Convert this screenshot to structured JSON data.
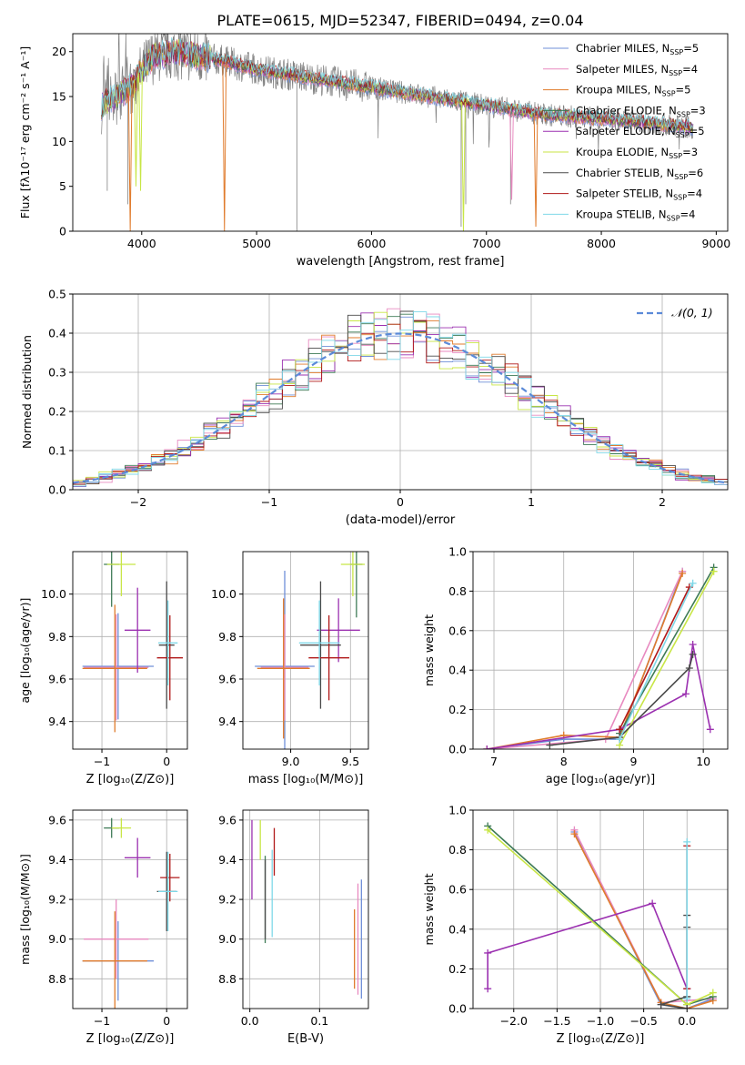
{
  "figure": {
    "title": "PLATE=0615, MJD=52347, FIBERID=0494, z=0.04"
  },
  "models": [
    {
      "name": "Chabrier MILES",
      "nssp": "5",
      "color": "#6f8fd8"
    },
    {
      "name": "Salpeter MILES",
      "nssp": "4",
      "color": "#e88ac0"
    },
    {
      "name": "Kroupa MILES",
      "nssp": "5",
      "color": "#e07b2c"
    },
    {
      "name": "Chabrier ELODIE",
      "nssp": "3",
      "color": "#3d7a55"
    },
    {
      "name": "Salpeter ELODIE",
      "nssp": "5",
      "color": "#9b30b0"
    },
    {
      "name": "Kroupa ELODIE",
      "nssp": "3",
      "color": "#c8e646"
    },
    {
      "name": "Chabrier STELIB",
      "nssp": "6",
      "color": "#4a4a4a"
    },
    {
      "name": "Salpeter STELIB",
      "nssp": "4",
      "color": "#b01818"
    },
    {
      "name": "Kroupa STELIB",
      "nssp": "4",
      "color": "#7fd8e8"
    }
  ],
  "chart_data": [
    {
      "id": "spectrum",
      "type": "line",
      "xlabel": "wavelength [Angstrom, rest frame]",
      "ylabel": "Flux [fλ10⁻¹⁷ erg cm⁻² s⁻¹ A⁻¹]",
      "xlim": [
        3400,
        9100
      ],
      "ylim": [
        0,
        22
      ],
      "xticks": [
        4000,
        5000,
        6000,
        7000,
        8000,
        9000
      ],
      "yticks": [
        0,
        5,
        10,
        15,
        20
      ],
      "data_color": "#808080",
      "data_range": [
        3650,
        8800
      ],
      "continuum": [
        [
          3650,
          14
        ],
        [
          3900,
          16
        ],
        [
          4100,
          19.5
        ],
        [
          4300,
          20
        ],
        [
          4500,
          19.5
        ],
        [
          4700,
          19
        ],
        [
          5000,
          18
        ],
        [
          5500,
          17
        ],
        [
          6000,
          16
        ],
        [
          6500,
          15
        ],
        [
          7000,
          14
        ],
        [
          7500,
          13
        ],
        [
          8000,
          12.5
        ],
        [
          8500,
          12
        ],
        [
          8800,
          11.5
        ]
      ],
      "dips": [
        [
          3900,
          0
        ],
        [
          4720,
          0
        ],
        [
          6800,
          0
        ],
        [
          7430,
          0.5
        ],
        [
          7220,
          3.5
        ],
        [
          3950,
          5
        ],
        [
          3990,
          4.5
        ]
      ]
    },
    {
      "id": "residuals",
      "type": "bar",
      "xlabel": "(data-model)/error",
      "ylabel": "Normed distribution",
      "xlim": [
        -2.5,
        2.5
      ],
      "ylim": [
        0,
        0.5
      ],
      "xticks": [
        -2,
        -1,
        0,
        1,
        2
      ],
      "yticks": [
        0.0,
        0.1,
        0.2,
        0.3,
        0.4,
        0.5
      ],
      "legend": "𝒩(0, 1)",
      "legend_position": "top-right",
      "bin_width": 0.1,
      "reference": {
        "type": "gaussian",
        "mean": 0,
        "sigma": 1,
        "style": "dashed",
        "color": "#5b8ad8"
      }
    },
    {
      "id": "age-vs-Z",
      "type": "scatter",
      "xlabel": "Z [log₁₀(Z/Z⊙)]",
      "ylabel": "age  [log₁₀(age/yr)]",
      "xlim": [
        -1.45,
        0.32
      ],
      "ylim": [
        9.27,
        10.2
      ],
      "xticks": [
        -1,
        0
      ],
      "yticks": [
        9.4,
        9.6,
        9.8,
        10.0
      ],
      "points": [
        {
          "m": 0,
          "x": -0.75,
          "y": 9.66,
          "xerr": 0.55,
          "yerr": 0.25
        },
        {
          "m": 1,
          "x": -0.78,
          "y": 9.655,
          "xerr": 0.5,
          "yerr": 0.25
        },
        {
          "m": 2,
          "x": -0.8,
          "y": 9.65,
          "xerr": 0.5,
          "yerr": 0.3
        },
        {
          "m": 3,
          "x": -0.85,
          "y": 10.14,
          "xerr": 0.12,
          "yerr": 0.2
        },
        {
          "m": 4,
          "x": -0.45,
          "y": 9.83,
          "xerr": 0.2,
          "yerr": 0.2
        },
        {
          "m": 5,
          "x": -0.7,
          "y": 10.14,
          "xerr": 0.22,
          "yerr": 0.15
        },
        {
          "m": 6,
          "x": 0.0,
          "y": 9.76,
          "xerr": 0.12,
          "yerr": 0.3
        },
        {
          "m": 7,
          "x": 0.05,
          "y": 9.7,
          "xerr": 0.2,
          "yerr": 0.2
        },
        {
          "m": 8,
          "x": 0.02,
          "y": 9.77,
          "xerr": 0.15,
          "yerr": 0.2
        }
      ]
    },
    {
      "id": "age-vs-mass",
      "type": "scatter",
      "xlabel": "mass [log₁₀(M/M⊙)]",
      "ylabel": "",
      "xlim": [
        8.6,
        9.65
      ],
      "ylim": [
        9.27,
        10.2
      ],
      "xticks": [
        9.0,
        9.5
      ],
      "yticks": [
        9.4,
        9.6,
        9.8,
        10.0
      ],
      "points": [
        {
          "m": 0,
          "x": 8.95,
          "y": 9.66,
          "xerr": 0.25,
          "yerr": 0.45
        },
        {
          "m": 1,
          "x": 8.95,
          "y": 9.655,
          "xerr": 0.2,
          "yerr": 0.25
        },
        {
          "m": 2,
          "x": 8.94,
          "y": 9.65,
          "xerr": 0.22,
          "yerr": 0.33
        },
        {
          "m": 3,
          "x": 9.55,
          "y": 10.14,
          "xerr": 0.05,
          "yerr": 0.25
        },
        {
          "m": 4,
          "x": 9.4,
          "y": 9.83,
          "xerr": 0.18,
          "yerr": 0.15
        },
        {
          "m": 5,
          "x": 9.52,
          "y": 10.14,
          "xerr": 0.1,
          "yerr": 0.15
        },
        {
          "m": 6,
          "x": 9.25,
          "y": 9.76,
          "xerr": 0.17,
          "yerr": 0.3
        },
        {
          "m": 7,
          "x": 9.32,
          "y": 9.7,
          "xerr": 0.17,
          "yerr": 0.2
        },
        {
          "m": 8,
          "x": 9.24,
          "y": 9.77,
          "xerr": 0.17,
          "yerr": 0.2
        }
      ]
    },
    {
      "id": "weight-vs-age",
      "type": "line",
      "xlabel": "age  [log₁₀(age/yr)]",
      "ylabel": "mass weight",
      "xlim": [
        6.7,
        10.35
      ],
      "ylim": [
        0,
        1.0
      ],
      "xticks": [
        7,
        8,
        9,
        10
      ],
      "yticks": [
        0.0,
        0.2,
        0.4,
        0.6,
        0.8,
        1.0
      ],
      "series": [
        {
          "m": 0,
          "x": [
            6.9,
            8.0,
            8.8,
            9.7
          ],
          "y": [
            0.0,
            0.05,
            0.05,
            0.9
          ]
        },
        {
          "m": 1,
          "x": [
            6.9,
            8.6,
            9.7
          ],
          "y": [
            0.0,
            0.05,
            0.9
          ]
        },
        {
          "m": 2,
          "x": [
            6.9,
            8.0,
            8.8,
            9.7
          ],
          "y": [
            0.0,
            0.07,
            0.06,
            0.89
          ]
        },
        {
          "m": 3,
          "x": [
            8.8,
            10.15
          ],
          "y": [
            0.08,
            0.92
          ]
        },
        {
          "m": 4,
          "x": [
            6.9,
            8.8,
            9.75,
            9.85,
            10.1
          ],
          "y": [
            0.0,
            0.1,
            0.28,
            0.53,
            0.1
          ]
        },
        {
          "m": 5,
          "x": [
            8.8,
            10.15
          ],
          "y": [
            0.02,
            0.9
          ]
        },
        {
          "m": 6,
          "x": [
            7.8,
            8.8,
            9.8,
            9.85
          ],
          "y": [
            0.02,
            0.06,
            0.41,
            0.48
          ]
        },
        {
          "m": 7,
          "x": [
            8.8,
            9.8
          ],
          "y": [
            0.1,
            0.82
          ]
        },
        {
          "m": 8,
          "x": [
            8.8,
            9.85
          ],
          "y": [
            0.05,
            0.84
          ]
        }
      ]
    },
    {
      "id": "mass-vs-Z",
      "type": "scatter",
      "xlabel": "Z [log₁₀(Z/Z⊙)]",
      "ylabel": "mass [log₁₀(M/M⊙)]",
      "xlim": [
        -1.45,
        0.32
      ],
      "ylim": [
        8.65,
        9.65
      ],
      "xticks": [
        -1,
        0
      ],
      "yticks": [
        8.8,
        9.0,
        9.2,
        9.4,
        9.6
      ],
      "points": [
        {
          "m": 0,
          "x": -0.75,
          "y": 8.89,
          "xerr": 0.55,
          "yerr": 0.2
        },
        {
          "m": 1,
          "x": -0.78,
          "y": 9.0,
          "xerr": 0.5,
          "yerr": 0.2
        },
        {
          "m": 2,
          "x": -0.8,
          "y": 8.89,
          "xerr": 0.5,
          "yerr": 0.25
        },
        {
          "m": 3,
          "x": -0.85,
          "y": 9.56,
          "xerr": 0.12,
          "yerr": 0.05
        },
        {
          "m": 4,
          "x": -0.45,
          "y": 9.41,
          "xerr": 0.2,
          "yerr": 0.1
        },
        {
          "m": 5,
          "x": -0.7,
          "y": 9.56,
          "xerr": 0.15,
          "yerr": 0.05
        },
        {
          "m": 6,
          "x": 0.0,
          "y": 9.24,
          "xerr": 0.15,
          "yerr": 0.2
        },
        {
          "m": 7,
          "x": 0.05,
          "y": 9.31,
          "xerr": 0.15,
          "yerr": 0.12
        },
        {
          "m": 8,
          "x": 0.02,
          "y": 9.24,
          "xerr": 0.15,
          "yerr": 0.2
        }
      ]
    },
    {
      "id": "mass-vs-EBV",
      "type": "scatter",
      "xlabel": "E(B-V)",
      "ylabel": "",
      "xlim": [
        -0.01,
        0.17
      ],
      "ylim": [
        8.65,
        9.65
      ],
      "xticks": [
        0.0,
        0.1
      ],
      "yticks": [
        8.8,
        9.0,
        9.2,
        9.4,
        9.6
      ],
      "points": [
        {
          "m": 0,
          "x": 0.16,
          "y": 9.0,
          "xerr": 0,
          "yerr": 0.3
        },
        {
          "m": 1,
          "x": 0.155,
          "y": 9.0,
          "xerr": 0,
          "yerr": 0.28
        },
        {
          "m": 2,
          "x": 0.15,
          "y": 8.95,
          "xerr": 0,
          "yerr": 0.2
        },
        {
          "m": 3,
          "x": 0.022,
          "y": 9.2,
          "xerr": 0,
          "yerr": 0.22
        },
        {
          "m": 4,
          "x": 0.003,
          "y": 9.4,
          "xerr": 0,
          "yerr": 0.2
        },
        {
          "m": 5,
          "x": 0.015,
          "y": 9.5,
          "xerr": 0,
          "yerr": 0.1
        },
        {
          "m": 6,
          "x": 0.022,
          "y": 9.2,
          "xerr": 0,
          "yerr": 0.2
        },
        {
          "m": 7,
          "x": 0.035,
          "y": 9.44,
          "xerr": 0,
          "yerr": 0.12
        },
        {
          "m": 8,
          "x": 0.032,
          "y": 9.23,
          "xerr": 0,
          "yerr": 0.22
        }
      ]
    },
    {
      "id": "weight-vs-Z",
      "type": "line",
      "xlabel": "Z [log₁₀(Z/Z⊙)]",
      "ylabel": "mass weight",
      "xlim": [
        -2.47,
        0.47
      ],
      "ylim": [
        0,
        1.0
      ],
      "xticks": [
        -2.0,
        -1.5,
        -1.0,
        -0.5,
        0.0
      ],
      "yticks": [
        0.0,
        0.2,
        0.4,
        0.6,
        0.8,
        1.0
      ],
      "series": [
        {
          "m": 0,
          "x": [
            -1.3,
            -0.3,
            0.0,
            0.3
          ],
          "y": [
            0.89,
            0.02,
            0.0,
            0.05
          ]
        },
        {
          "m": 1,
          "x": [
            -1.3,
            -0.3,
            0.3
          ],
          "y": [
            0.9,
            0.03,
            0.05
          ]
        },
        {
          "m": 2,
          "x": [
            -1.3,
            -0.3,
            0.0,
            0.3
          ],
          "y": [
            0.88,
            0.03,
            0.0,
            0.04
          ]
        },
        {
          "m": 3,
          "x": [
            -2.3,
            0.0,
            0.3
          ],
          "y": [
            0.92,
            0.02,
            0.06
          ]
        },
        {
          "m": 4,
          "x": [
            -2.3,
            -2.3,
            -0.4,
            0.0,
            0.0
          ],
          "y": [
            0.1,
            0.28,
            0.53,
            0.1,
            0.0
          ]
        },
        {
          "m": 5,
          "x": [
            -2.3,
            0.0,
            0.3
          ],
          "y": [
            0.9,
            0.02,
            0.08
          ]
        },
        {
          "m": 6,
          "x": [
            0.0,
            0.0,
            0.0,
            -0.3,
            0.0
          ],
          "y": [
            0.47,
            0.41,
            0.06,
            0.02,
            0.0
          ]
        },
        {
          "m": 7,
          "x": [
            0.0,
            0.0
          ],
          "y": [
            0.82,
            0.1
          ]
        },
        {
          "m": 8,
          "x": [
            0.0,
            0.0
          ],
          "y": [
            0.84,
            0.05
          ]
        }
      ]
    }
  ]
}
